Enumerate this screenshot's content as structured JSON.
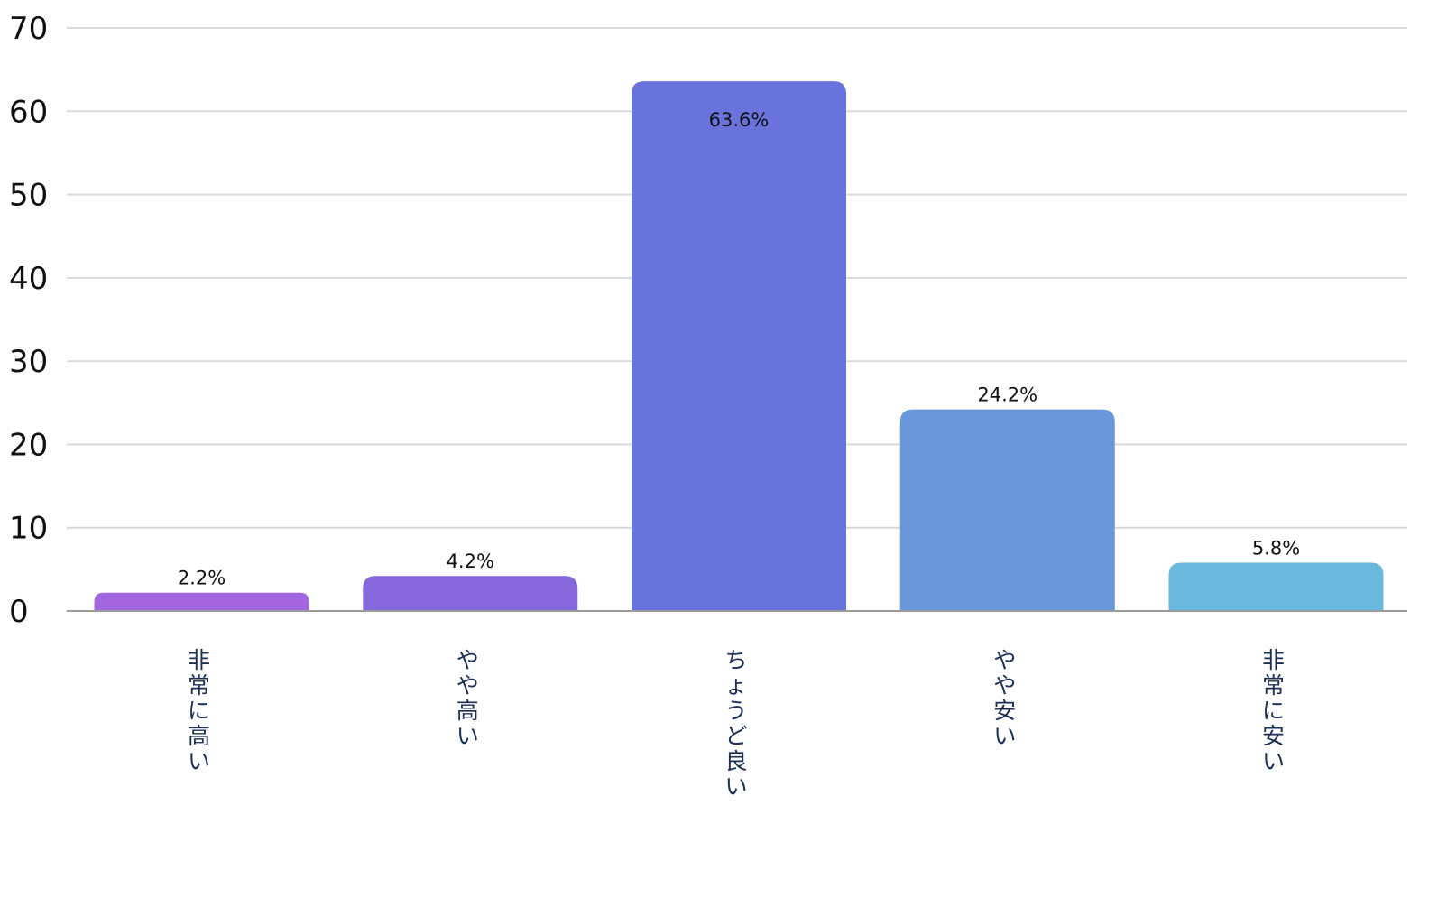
{
  "chart_data": {
    "type": "bar",
    "categories": [
      "非常に高い",
      "やや高い",
      "ちょうど良い",
      "やや安い",
      "非常に安い"
    ],
    "values": [
      2.2,
      4.2,
      63.6,
      24.2,
      5.8
    ],
    "value_labels": [
      "2.2%",
      "4.2%",
      "63.6%",
      "24.2%",
      "5.8%"
    ],
    "colors": [
      "#a366df",
      "#8468dc",
      "#6a72db",
      "#6a96dc",
      "#6ab8dc"
    ],
    "title": "",
    "xlabel": "",
    "ylabel": "",
    "ylim": [
      0,
      70
    ],
    "yticks": [
      0,
      10,
      20,
      30,
      40,
      50,
      60,
      70
    ],
    "grid": true,
    "legend": "none",
    "category_label_orientation": "vertical"
  }
}
